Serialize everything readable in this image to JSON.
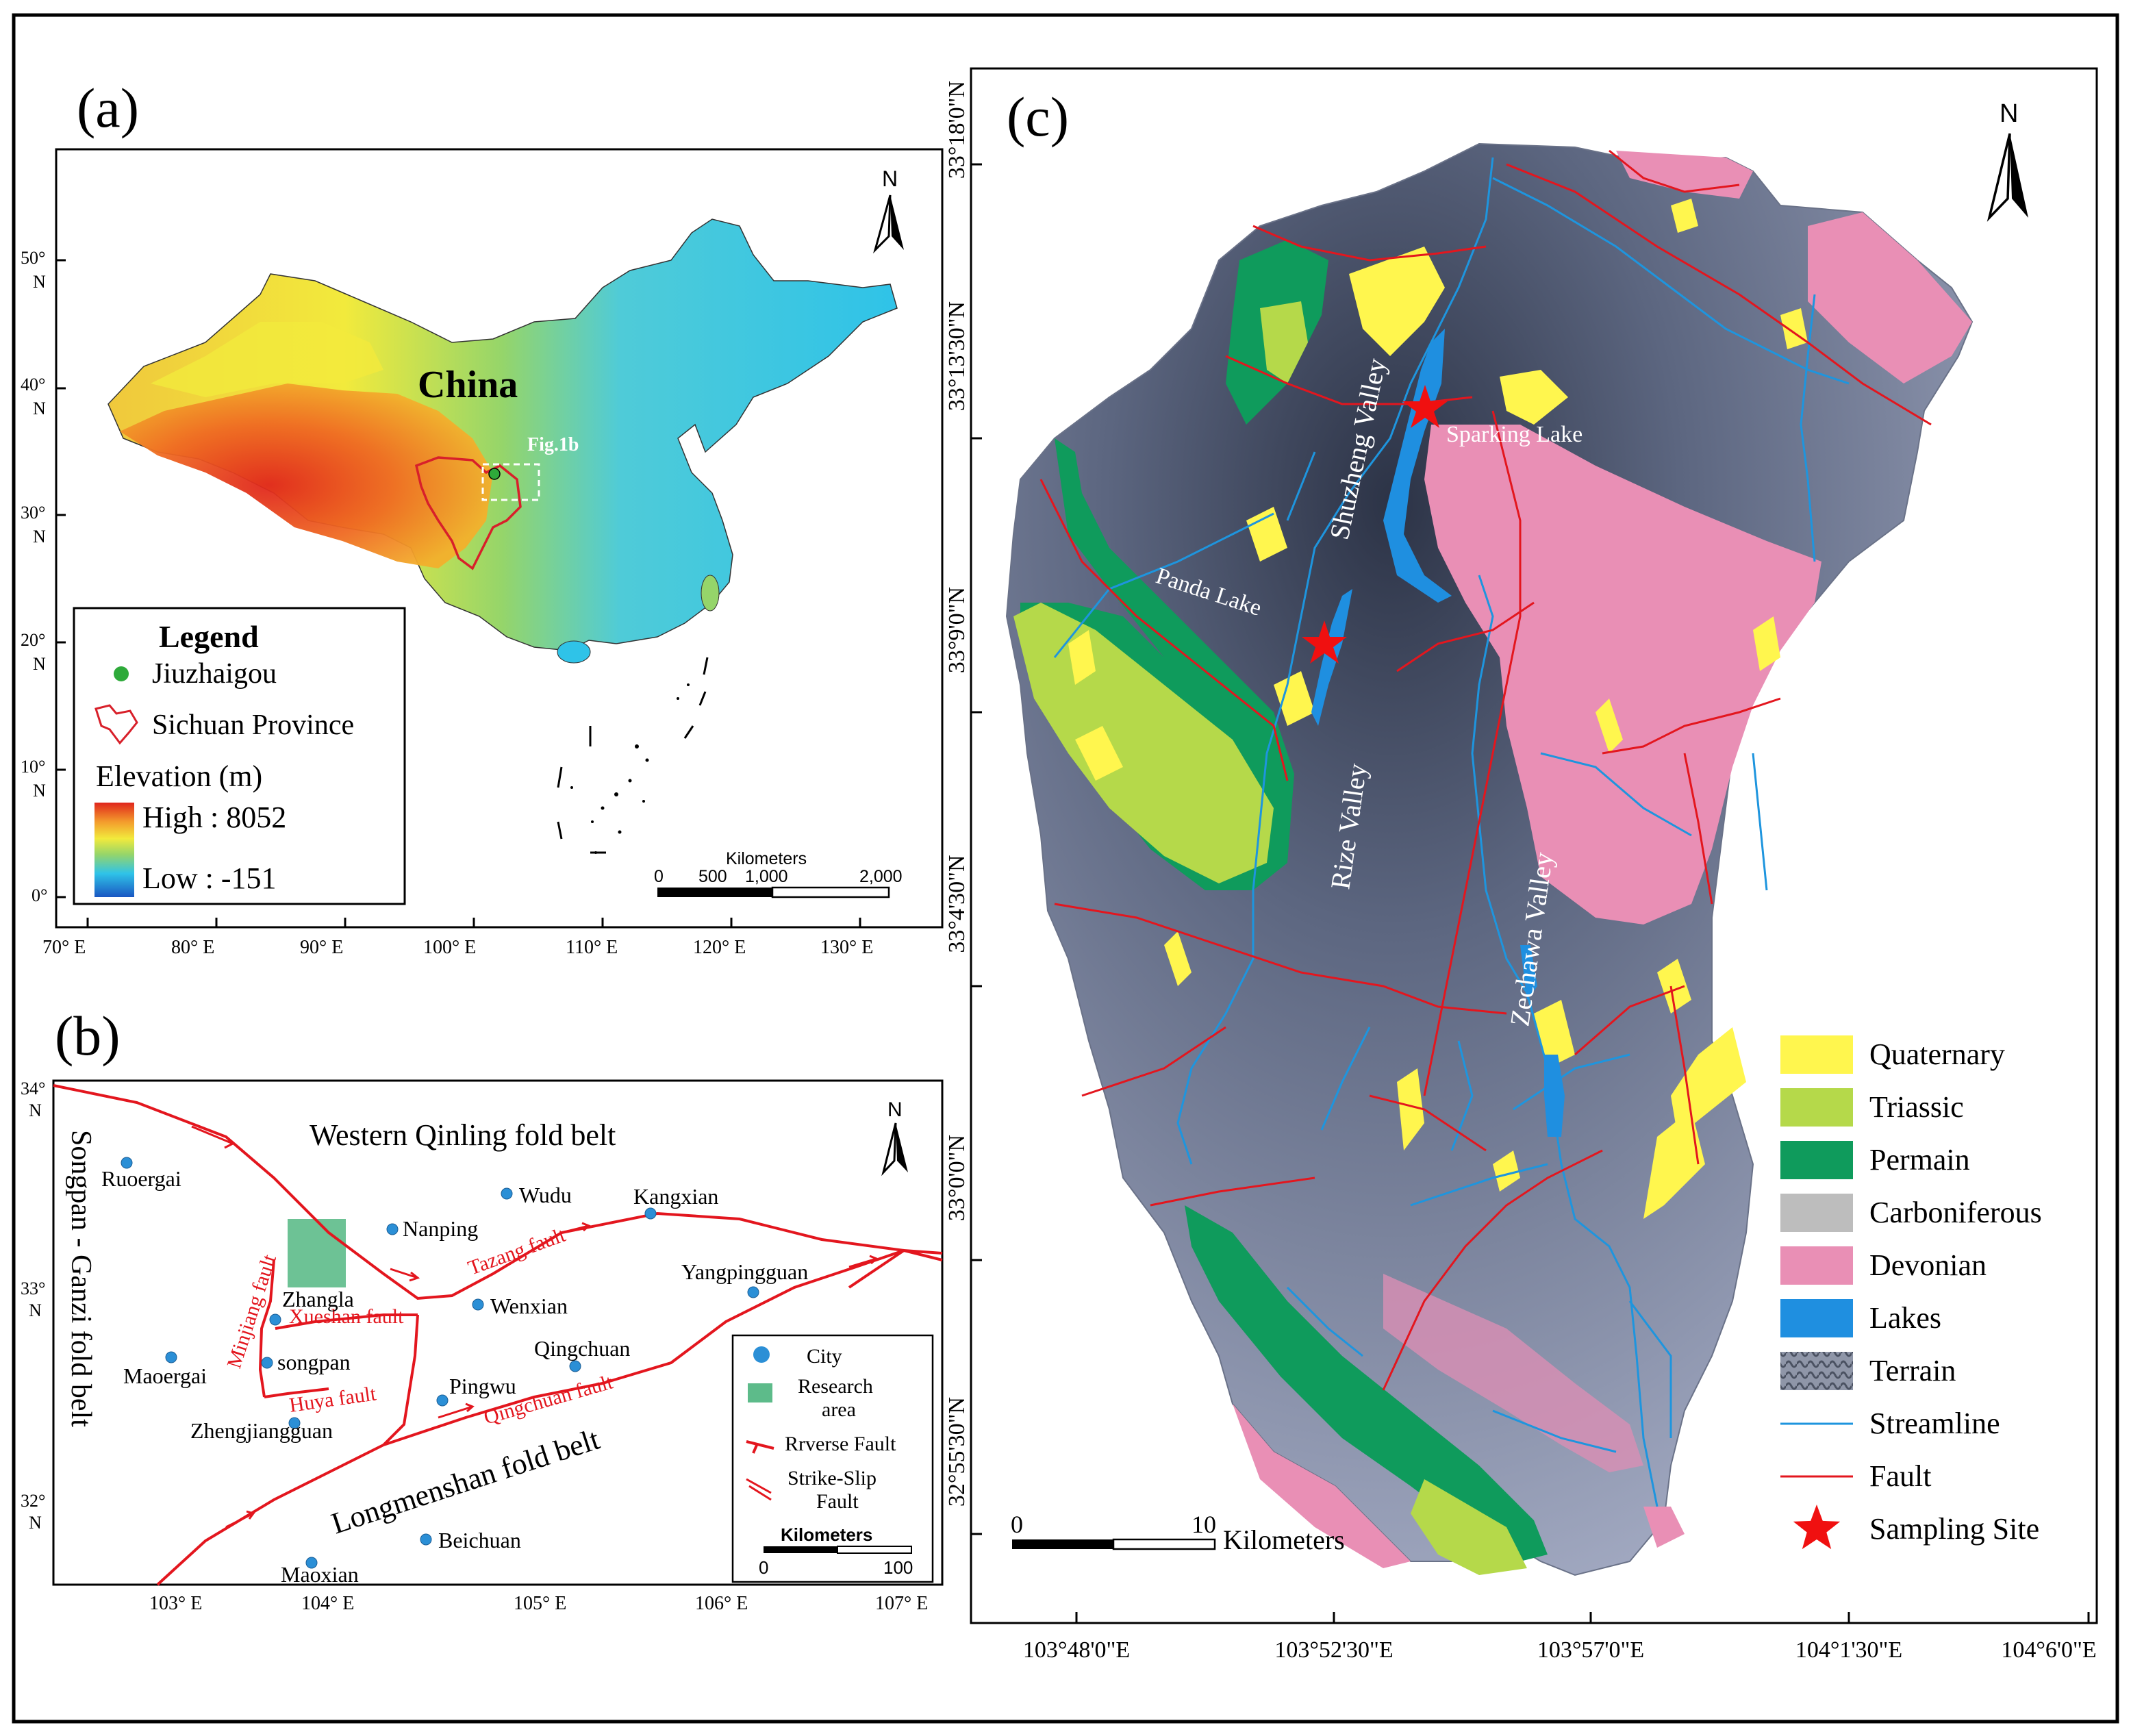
{
  "colors": {
    "frame": "#000000",
    "ocean": "#ffffff",
    "elev_low": "#1a56c2",
    "elev_mid": "#2fc3e8",
    "elev_green": "#95d56a",
    "elev_yellow": "#f2ea3c",
    "elev_orange": "#f39a2c",
    "elev_high": "#e0261c",
    "jiuzhaigou_dot": "#2eaa3a",
    "sichuan_outline": "#d8202a",
    "fault_red": "#e3161e",
    "city_blue": "#2b8fd6",
    "research_green": "#5dbb8a",
    "quaternary": "#fff64e",
    "triassic": "#b5d94a",
    "permain": "#0f9b5c",
    "carboniferous": "#bdbdbd",
    "devonian": "#e98fb5",
    "lakes": "#1f8fe0",
    "terrain_dark": "#3d4658",
    "terrain_light": "#a9b0c8",
    "streamline": "#1e95de",
    "fault": "#e3161e",
    "sampling_site": "#f01010",
    "label_white": "#ffffff"
  },
  "panel_a": {
    "label": "(a)",
    "north": "N",
    "country": "China",
    "box_label": "Fig.1b",
    "legend": {
      "title": "Legend",
      "jiuzhaigou": "Jiuzhaigou",
      "sichuan": "Sichuan Province",
      "elevation_title": "Elevation (m)",
      "high": "High : 8052",
      "low": "Low : -151"
    },
    "scale": {
      "title": "Kilometers",
      "ticks": [
        "0",
        "500",
        "1,000",
        "2,000"
      ]
    },
    "lat_ticks": [
      {
        "deg": "50°",
        "hemi": "N"
      },
      {
        "deg": "40°",
        "hemi": "N"
      },
      {
        "deg": "30°",
        "hemi": "N"
      },
      {
        "deg": "20°",
        "hemi": "N"
      },
      {
        "deg": "10°",
        "hemi": "N"
      },
      {
        "deg": "0°",
        "hemi": ""
      }
    ],
    "lon_ticks": [
      "70° E",
      "80° E",
      "90° E",
      "100° E",
      "110° E",
      "120° E",
      "130° E"
    ]
  },
  "panel_b": {
    "label": "(b)",
    "north": "N",
    "regions": {
      "qinling": "Western Qinling fold belt",
      "songpan": "Songpan - Ganzi fold belt",
      "longmenshan": "Longmenshan fold belt"
    },
    "faults": {
      "minjiang": "Minjiang fault",
      "xueshan": "Xueshan fault",
      "tazang": "Tazang fault",
      "huya": "Huya fault",
      "qingchuan": "Qingchuan fault"
    },
    "cities": {
      "ruoergai": "Ruoergai",
      "nanping": "Nanping",
      "wudu": "Wudu",
      "kangxian": "Kangxian",
      "yangpingguan": "Yangpingguan",
      "wenxian": "Wenxian",
      "zhangla": "Zhangla",
      "songpan": "songpan",
      "maoergai": "Maoergai",
      "pingwu": "Pingwu",
      "qingchuan": "Qingchuan",
      "zhengjiangguan": "Zhengjiangguan",
      "beichuan": "Beichuan",
      "maoxian": "Maoxian"
    },
    "legend": {
      "city": "City",
      "research_1": "Research",
      "research_2": "area",
      "reverse_fault": "Rrverse Fault",
      "strike_slip_1": "Strike-Slip",
      "strike_slip_2": "Fault",
      "scale_title": "Kilometers",
      "scale_0": "0",
      "scale_100": "100"
    },
    "lat_ticks": [
      {
        "deg": "34°",
        "hemi": "N"
      },
      {
        "deg": "33°",
        "hemi": "N"
      },
      {
        "deg": "32°",
        "hemi": "N"
      }
    ],
    "lon_ticks": [
      "103° E",
      "104° E",
      "105° E",
      "106° E",
      "107° E"
    ]
  },
  "panel_c": {
    "label": "(c)",
    "north": "N",
    "valleys": {
      "shuzheng": "Shuzheng Valley",
      "rize": "Rize Valley",
      "zechawa": "Zechawa Valley"
    },
    "lakes": {
      "sparking": "Sparking Lake",
      "panda": "Panda Lake"
    },
    "lat_ticks": [
      "33°18'0\"N",
      "33°13'30\"N",
      "33°9'0\"N",
      "33°4'30\"N",
      "33°0'0\"N",
      "32°55'30\"N"
    ],
    "lon_ticks": [
      "103°48'0\"E",
      "103°52'30\"E",
      "103°57'0\"E",
      "104°1'30\"E",
      "104°6'0\"E"
    ],
    "scale": {
      "zero": "0",
      "ten": "10",
      "unit": "Kilometers"
    },
    "legend": [
      {
        "key": "quaternary",
        "label": "Quaternary",
        "kind": "fill"
      },
      {
        "key": "triassic",
        "label": "Triassic",
        "kind": "fill"
      },
      {
        "key": "permain",
        "label": "Permain",
        "kind": "fill"
      },
      {
        "key": "carboniferous",
        "label": "Carboniferous",
        "kind": "fill"
      },
      {
        "key": "devonian",
        "label": "Devonian",
        "kind": "fill"
      },
      {
        "key": "lakes",
        "label": "Lakes",
        "kind": "fill"
      },
      {
        "key": "terrain",
        "label": "Terrain",
        "kind": "terrain"
      },
      {
        "key": "streamline",
        "label": "Streamline",
        "kind": "line"
      },
      {
        "key": "fault",
        "label": "Fault",
        "kind": "line"
      },
      {
        "key": "sampling_site",
        "label": "Sampling Site",
        "kind": "star"
      }
    ]
  }
}
